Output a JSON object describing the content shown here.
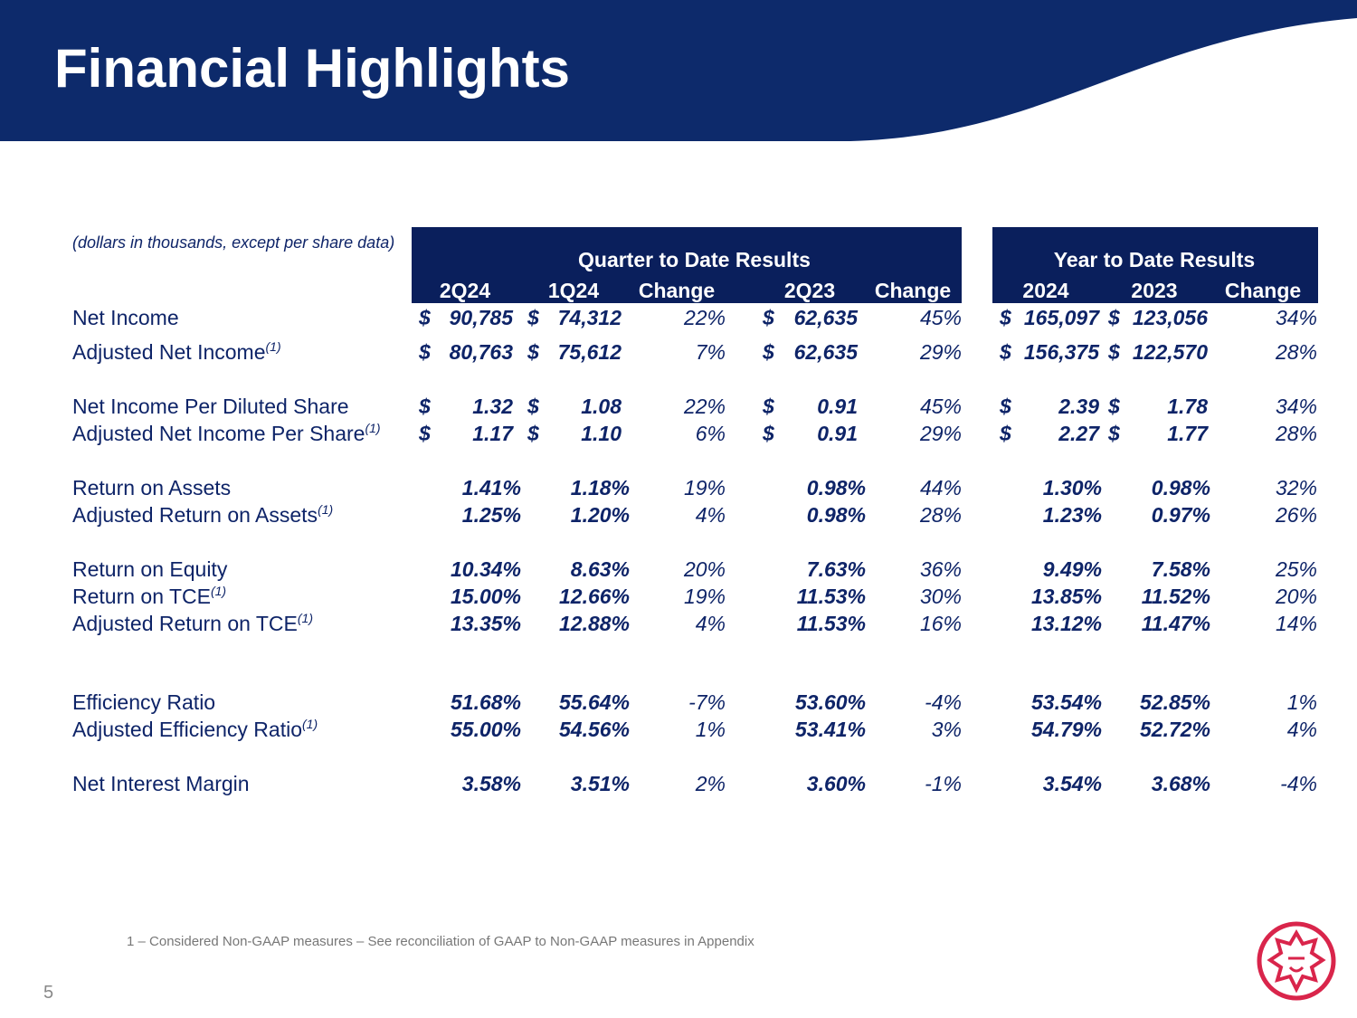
{
  "header": {
    "title": "Financial Highlights"
  },
  "table": {
    "note": "(dollars in thousands, except per share data)",
    "groups": [
      {
        "title": "Quarter to Date Results",
        "columns": [
          "2Q24",
          "1Q24",
          "Change",
          "2Q23",
          "Change"
        ]
      },
      {
        "title": "Year to Date Results",
        "columns": [
          "2024",
          "2023",
          "Change"
        ]
      }
    ],
    "rows": [
      {
        "label": "Net Income",
        "currency": "$",
        "values": [
          "90,785",
          "74,312",
          "22%",
          "62,635",
          "45%",
          "165,097",
          "123,056",
          "34%"
        ]
      },
      {
        "label": "Adjusted Net Income",
        "note": "(1)",
        "currency": "$",
        "values": [
          "80,763",
          "75,612",
          "7%",
          "62,635",
          "29%",
          "156,375",
          "122,570",
          "28%"
        ]
      },
      {
        "label": "Net Income Per Diluted Share",
        "currency": "$",
        "values": [
          "1.32",
          "1.08",
          "22%",
          "0.91",
          "45%",
          "2.39",
          "1.78",
          "34%"
        ]
      },
      {
        "label": "Adjusted Net Income Per Share",
        "note": "(1)",
        "currency": "$",
        "values": [
          "1.17",
          "1.10",
          "6%",
          "0.91",
          "29%",
          "2.27",
          "1.77",
          "28%"
        ]
      },
      {
        "label": "Return on Assets",
        "values": [
          "1.41%",
          "1.18%",
          "19%",
          "0.98%",
          "44%",
          "1.30%",
          "0.98%",
          "32%"
        ]
      },
      {
        "label": "Adjusted Return on Assets",
        "note": "(1)",
        "values": [
          "1.25%",
          "1.20%",
          "4%",
          "0.98%",
          "28%",
          "1.23%",
          "0.97%",
          "26%"
        ]
      },
      {
        "label": "Return on Equity",
        "values": [
          "10.34%",
          "8.63%",
          "20%",
          "7.63%",
          "36%",
          "9.49%",
          "7.58%",
          "25%"
        ]
      },
      {
        "label": "Return on TCE",
        "note": "(1)",
        "values": [
          "15.00%",
          "12.66%",
          "19%",
          "11.53%",
          "30%",
          "13.85%",
          "11.52%",
          "20%"
        ]
      },
      {
        "label": "Adjusted Return on TCE",
        "note": "(1)",
        "values": [
          "13.35%",
          "12.88%",
          "4%",
          "11.53%",
          "16%",
          "13.12%",
          "11.47%",
          "14%"
        ]
      },
      {
        "label": "Efficiency Ratio",
        "values": [
          "51.68%",
          "55.64%",
          "-7%",
          "53.60%",
          "-4%",
          "53.54%",
          "52.85%",
          "1%"
        ]
      },
      {
        "label": "Adjusted Efficiency Ratio",
        "note": "(1)",
        "values": [
          "55.00%",
          "54.56%",
          "1%",
          "53.41%",
          "3%",
          "54.79%",
          "52.72%",
          "4%"
        ]
      },
      {
        "label": "Net Interest Margin",
        "values": [
          "3.58%",
          "3.51%",
          "2%",
          "3.60%",
          "-1%",
          "3.54%",
          "3.68%",
          "-4%"
        ]
      }
    ]
  },
  "footnote": "1 – Considered Non-GAAP measures – See reconciliation of GAAP to Non-GAAP measures in Appendix",
  "page_number": "5"
}
